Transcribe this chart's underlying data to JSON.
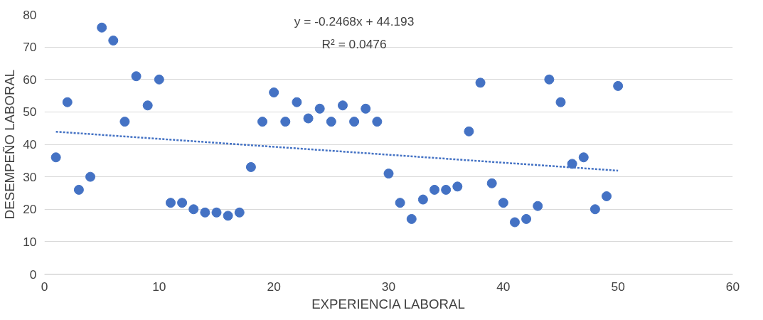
{
  "chart_data": {
    "type": "scatter",
    "xlabel": "EXPERIENCIA LABORAL",
    "ylabel": "DESEMPEÑO LABORAL",
    "xlim": [
      0,
      60
    ],
    "xticks": [
      0,
      10,
      20,
      30,
      40,
      50,
      60
    ],
    "ylim": [
      0,
      80
    ],
    "yticks": [
      0,
      10,
      20,
      30,
      40,
      50,
      60,
      70,
      80
    ],
    "grid": "y",
    "marker": "circle",
    "annotations": [
      "y = -0.2468x + 44.193",
      "R² = 0.0476"
    ],
    "series": [
      {
        "color": "#4472c4",
        "x": [
          1,
          2,
          3,
          4,
          5,
          6,
          7,
          8,
          9,
          10,
          11,
          12,
          13,
          14,
          15,
          16,
          17,
          18,
          19,
          20,
          21,
          22,
          23,
          24,
          25,
          26,
          27,
          28,
          29,
          30,
          31,
          32,
          33,
          34,
          35,
          36,
          37,
          38,
          39,
          40,
          41,
          42,
          43,
          44,
          45,
          46,
          47,
          48,
          49,
          50
        ],
        "values": [
          36,
          53,
          26,
          30,
          76,
          72,
          47,
          61,
          52,
          60,
          22,
          22,
          20,
          19,
          19,
          18,
          19,
          33,
          47,
          56,
          47,
          53,
          48,
          51,
          47,
          52,
          47,
          51,
          47,
          31,
          22,
          17,
          23,
          26,
          26,
          27,
          44,
          59,
          28,
          22,
          16,
          17,
          21,
          60,
          53,
          34,
          36,
          20,
          24,
          58
        ]
      },
      {
        "type": "line",
        "line_style": "dotted",
        "marker": "none",
        "color": "#4472c4",
        "x": [
          1,
          50
        ],
        "values": [
          43.9,
          31.9
        ]
      }
    ]
  }
}
